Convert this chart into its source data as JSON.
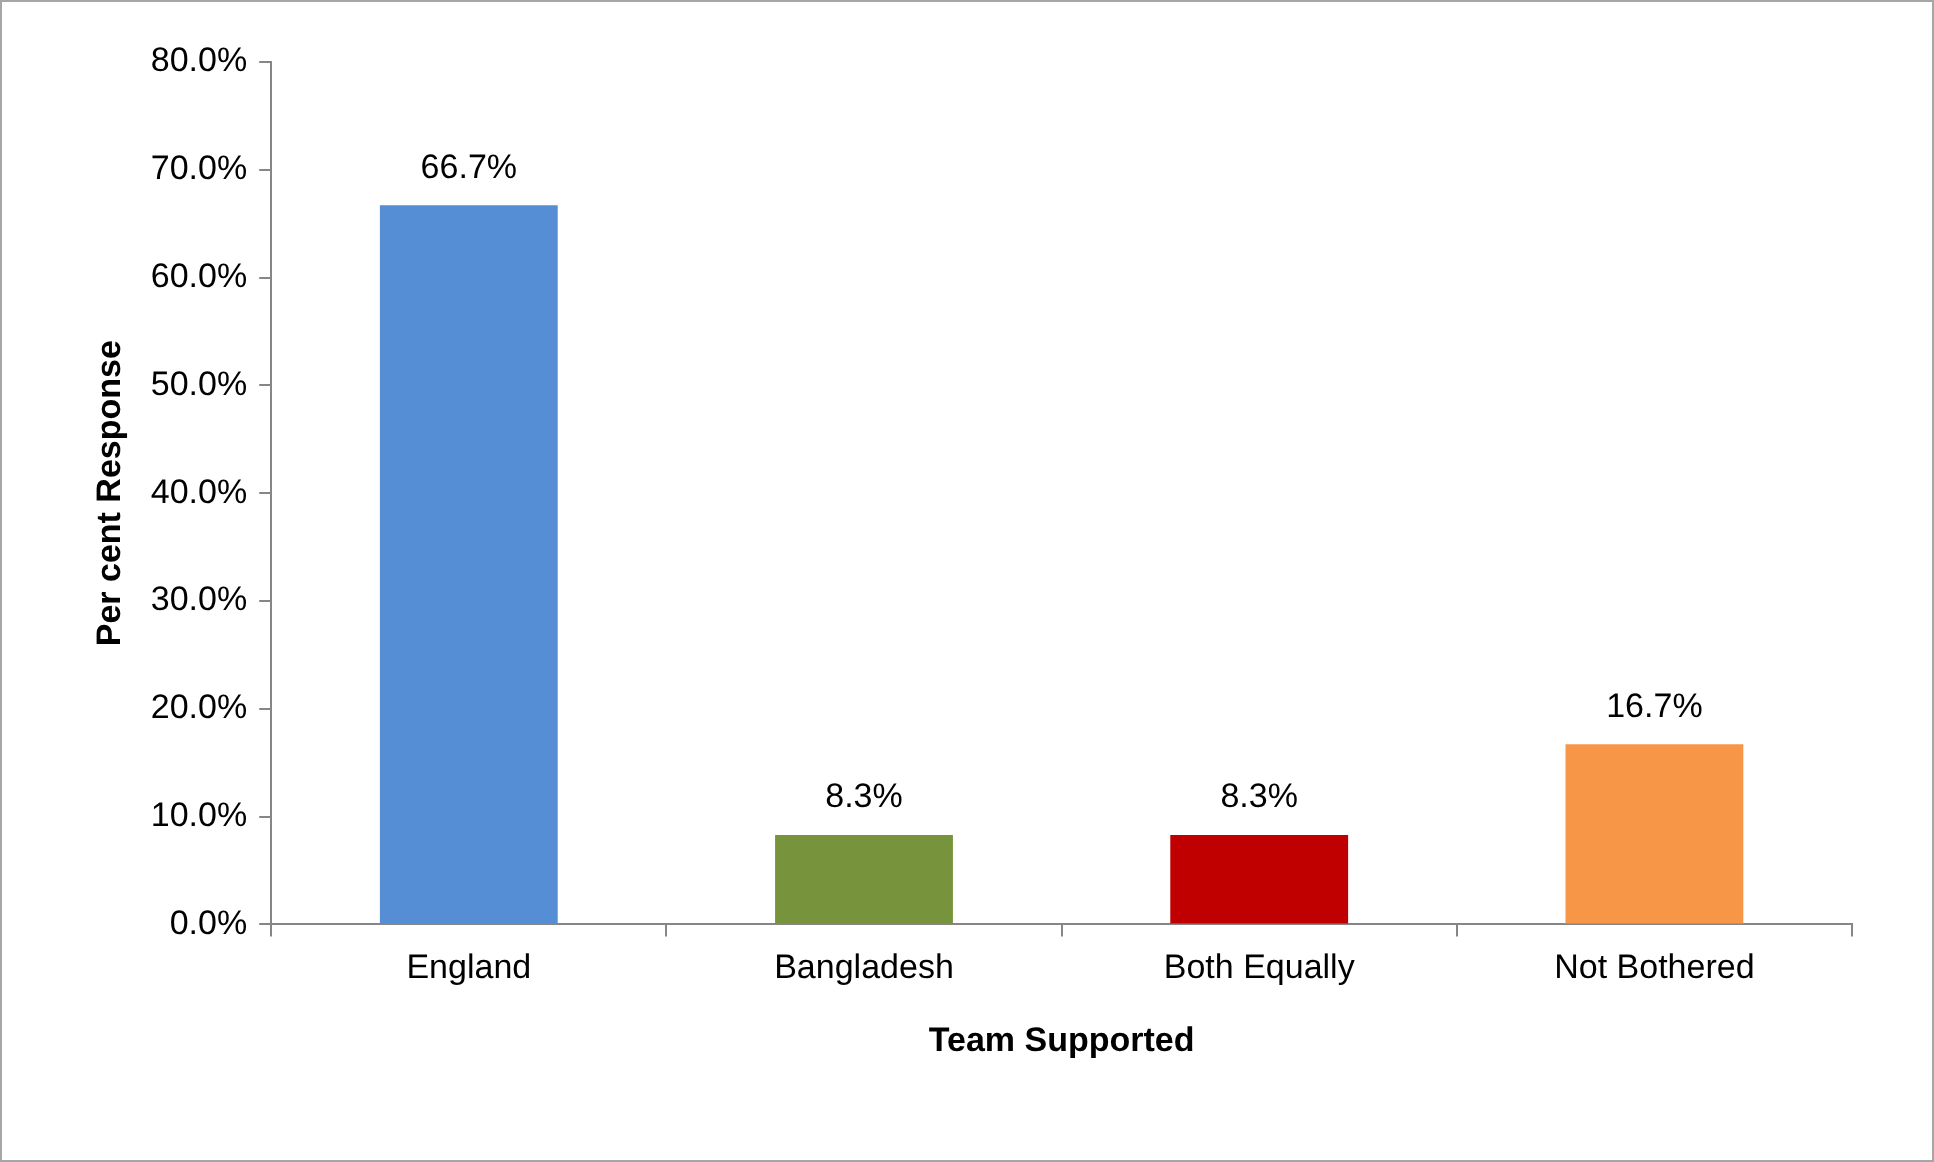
{
  "chart_data": {
    "type": "bar",
    "xlabel": "Team Supported",
    "ylabel": "Per cent Response",
    "categories": [
      "England",
      "Bangladesh",
      "Both Equally",
      "Not Bothered"
    ],
    "values": [
      66.7,
      8.3,
      8.3,
      16.7
    ],
    "colors": [
      "#558ed5",
      "#77933c",
      "#c00000",
      "#f79646"
    ],
    "value_labels": [
      "66.7%",
      "8.3%",
      "8.3%",
      "16.7%"
    ],
    "ylim": [
      0,
      80
    ],
    "yticks": [
      {
        "value": 0,
        "label": "0.0%"
      },
      {
        "value": 10,
        "label": "10.0%"
      },
      {
        "value": 20,
        "label": "20.0%"
      },
      {
        "value": 30,
        "label": "30.0%"
      },
      {
        "value": 40,
        "label": "40.0%"
      },
      {
        "value": 50,
        "label": "50.0%"
      },
      {
        "value": 60,
        "label": "60.0%"
      },
      {
        "value": 70,
        "label": "70.0%"
      },
      {
        "value": 80,
        "label": "80.0%"
      }
    ],
    "grid": false,
    "legend": false
  }
}
